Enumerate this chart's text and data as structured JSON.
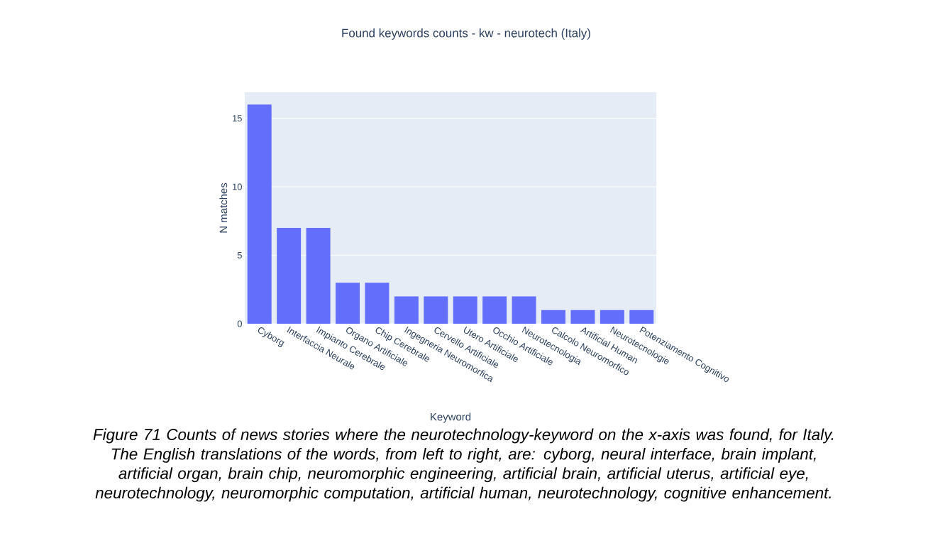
{
  "chart_data": {
    "type": "bar",
    "title": "Found keywords counts - kw - neurotech (Italy)",
    "xlabel": "Keyword",
    "ylabel": "N matches",
    "categories": [
      "Cyborg",
      "Interfaccia Neurale",
      "Impianto Cerebrale",
      "Organo Artificiale",
      "Chip Cerebrale",
      "Ingegneria Neuromorfica",
      "Cervello Artificiale",
      "Utero Artificiale",
      "Occhio Artificiale",
      "Neurotecnologia",
      "Calcolo Neuromorfico",
      "Artificial Human",
      "Neurotecnologie",
      "Potenziamento Cognitivo"
    ],
    "values": [
      16,
      7,
      7,
      3,
      3,
      2,
      2,
      2,
      2,
      2,
      1,
      1,
      1,
      1
    ],
    "color": "#636efa",
    "ylim": [
      0,
      16.9
    ],
    "yticks": [
      0,
      5,
      10,
      15
    ],
    "grid": "y",
    "annotations": [
      "*Figure 71 Counts of news stories where the neurotechnology-keyword on the x-axis was found, for Italy. The English translations of the words, from left to right, are: cyborg, neural interface, brain implant, artificial organ, brain chip, neuromorphic engineering, artificial brain, artificial uterus, artificial eye, neurotechnology, neuromorphic computation, artificial human, neurotechnology, cognitive enhancement.*"
    ]
  }
}
